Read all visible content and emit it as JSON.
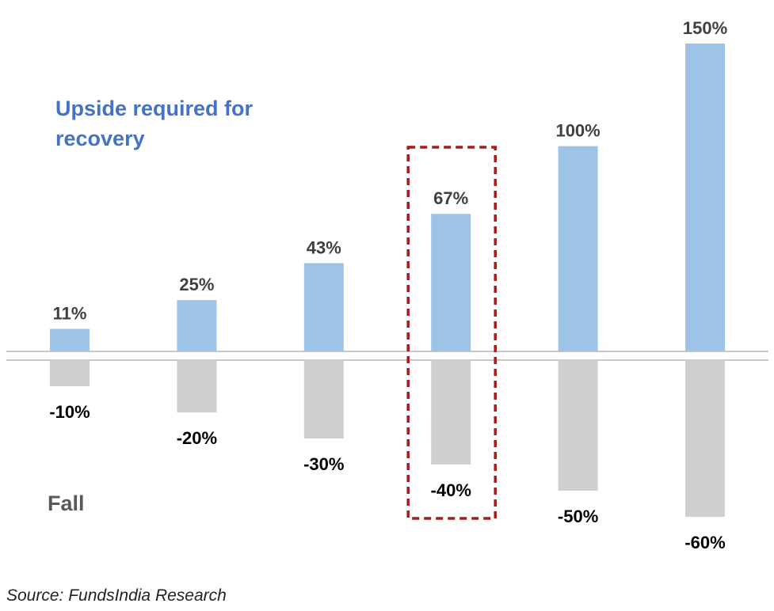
{
  "chart_data": {
    "type": "bar",
    "categories": [
      "-10%",
      "-20%",
      "-30%",
      "-40%",
      "-50%",
      "-60%"
    ],
    "series": [
      {
        "name": "Upside required for recovery",
        "values": [
          11,
          25,
          43,
          67,
          100,
          150
        ],
        "color": "#9dc3e6",
        "labels": [
          "11%",
          "25%",
          "43%",
          "67%",
          "100%",
          "150%"
        ]
      },
      {
        "name": "Fall",
        "values": [
          -10,
          -20,
          -30,
          -40,
          -50,
          -60
        ],
        "color": "#d0cece",
        "labels": [
          "-10%",
          "-20%",
          "-30%",
          "-40%",
          "-50%",
          "-60%"
        ]
      }
    ],
    "highlight_index": 3,
    "highlight_color": "#a51c1c",
    "baseline_color": "#c8c8c8",
    "grid": false,
    "legend": "none"
  },
  "labels": {
    "upside": "Upside required for recovery",
    "fall": "Fall",
    "source": "Source: FundsIndia Research"
  }
}
